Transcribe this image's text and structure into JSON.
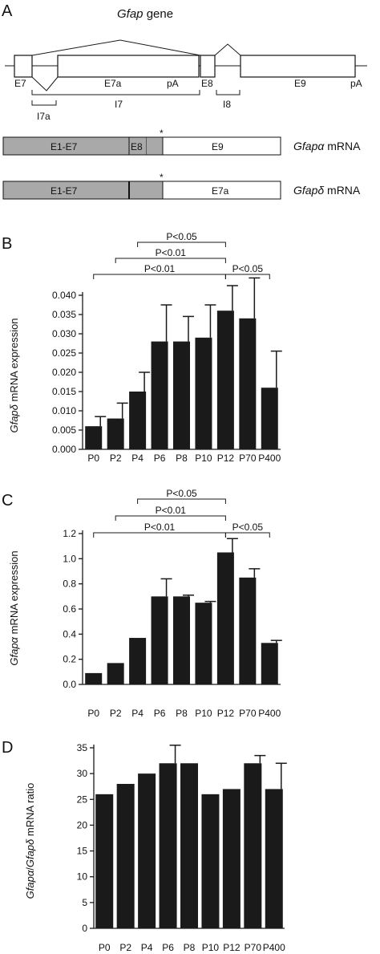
{
  "panels": {
    "a": {
      "letter": "A",
      "gene_title_italic": "Gfap",
      "gene_title_rest": " gene",
      "exon_labels": [
        "E7",
        "E7a",
        "pA",
        "E8",
        "E9",
        "pA"
      ],
      "intron_labels": [
        "I7",
        "I7a",
        "I8"
      ],
      "mrna": [
        {
          "name_italic": "Gfap",
          "name_greek": "α",
          "name_rest": " mRNA",
          "grey_segments": [
            "E1-E7",
            "E8"
          ],
          "white_segment": "E9",
          "asterisk": "*"
        },
        {
          "name_italic": "Gfap",
          "name_greek": "δ",
          "name_rest": " mRNA",
          "grey_segments": [
            "E1-E7",
            ""
          ],
          "white_segment": "E7a",
          "asterisk": "*"
        }
      ]
    },
    "b": {
      "letter": "B"
    },
    "c": {
      "letter": "C"
    },
    "d": {
      "letter": "D"
    }
  },
  "chart_data": [
    {
      "panel": "B",
      "type": "bar",
      "categories": [
        "P0",
        "P2",
        "P4",
        "P6",
        "P8",
        "P10",
        "P12",
        "P70",
        "P400"
      ],
      "values": [
        0.006,
        0.008,
        0.015,
        0.028,
        0.028,
        0.029,
        0.036,
        0.034,
        0.016
      ],
      "errors": [
        0.0025,
        0.004,
        0.005,
        0.0095,
        0.0065,
        0.0085,
        0.0065,
        0.0105,
        0.0095
      ],
      "ylabel_italic": "Gfap",
      "ylabel_greek": "δ",
      "ylabel_rest": " mRNA expression",
      "ylim": [
        0,
        0.04
      ],
      "yticks": [
        "0.000",
        "0.005",
        "0.010",
        "0.015",
        "0.020",
        "0.025",
        "0.030",
        "0.035",
        "0.040"
      ],
      "significance": [
        {
          "from": "P4",
          "to": "P12",
          "label": "P<0.05"
        },
        {
          "from": "P2",
          "to": "P12",
          "label": "P<0.01"
        },
        {
          "from": "P0",
          "to": "P12",
          "label": "P<0.01"
        },
        {
          "from": "P12",
          "to": "P400",
          "label": "P<0.05"
        }
      ]
    },
    {
      "panel": "C",
      "type": "bar",
      "categories": [
        "P0",
        "P2",
        "P4",
        "P6",
        "P8",
        "P10",
        "P12",
        "P70",
        "P400"
      ],
      "values": [
        0.09,
        0.17,
        0.37,
        0.7,
        0.7,
        0.65,
        1.05,
        0.85,
        0.33
      ],
      "errors": [
        0.0,
        0.0,
        0.0,
        0.14,
        0.01,
        0.01,
        0.11,
        0.07,
        0.02
      ],
      "ylabel_italic": "Gfap",
      "ylabel_greek": "α",
      "ylabel_rest": " mRNA expression",
      "ylim": [
        0,
        1.2
      ],
      "yticks": [
        "0.0",
        "0.2",
        "0.4",
        "0.6",
        "0.8",
        "1.0",
        "1.2"
      ],
      "significance": [
        {
          "from": "P4",
          "to": "P12",
          "label": "P<0.05"
        },
        {
          "from": "P2",
          "to": "P12",
          "label": "P<0.01"
        },
        {
          "from": "P0",
          "to": "P12",
          "label": "P<0.01"
        },
        {
          "from": "P12",
          "to": "P400",
          "label": "P<0.05"
        }
      ]
    },
    {
      "panel": "D",
      "type": "bar",
      "categories": [
        "P0",
        "P2",
        "P4",
        "P6",
        "P8",
        "P10",
        "P12",
        "P70",
        "P400"
      ],
      "values": [
        26,
        28,
        30,
        32,
        32,
        26,
        27,
        32,
        27
      ],
      "errors": [
        0,
        0,
        0,
        3.5,
        0,
        0,
        0,
        1.5,
        5
      ],
      "ylabel_italic": "Gfap",
      "ylabel_greek": "α",
      "ylabel_mid": "/",
      "ylabel_italic2": "Gfap",
      "ylabel_greek2": "δ",
      "ylabel_rest": " mRNA ratio",
      "ylim": [
        0,
        35
      ],
      "yticks": [
        "0",
        "5",
        "10",
        "15",
        "20",
        "25",
        "30",
        "35"
      ],
      "significance": []
    }
  ]
}
